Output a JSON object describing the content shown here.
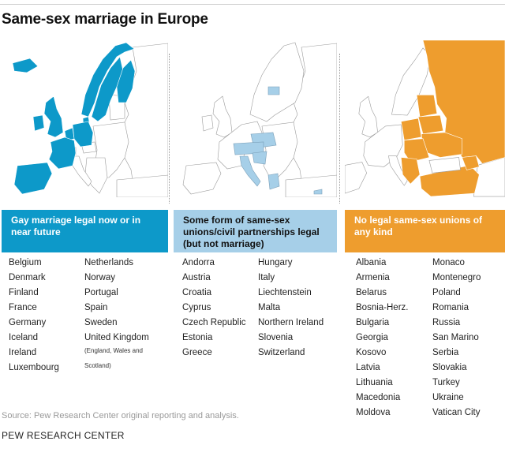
{
  "title": "Same-sex marriage in Europe",
  "colors": {
    "marriage": "#0d99c9",
    "civil_unions": "#a6cfe8",
    "no_recognition": "#ee9d2e",
    "unhighlighted": "#ffffff",
    "border": "#9a9a9a"
  },
  "categories": [
    {
      "key": "marriage",
      "label": "Gay marriage legal now or in near future",
      "countries_left": [
        "Belgium",
        "Denmark",
        "Finland",
        "France",
        "Germany",
        "Iceland",
        "Ireland",
        "Luxembourg"
      ],
      "countries_right": [
        "Netherlands",
        "Norway",
        "Portugal",
        "Spain",
        "Sweden",
        "United Kingdom"
      ],
      "uk_note": "(England, Wales and Scotland)"
    },
    {
      "key": "civil_unions",
      "label": "Some form of same-sex unions/civil partnerships legal (but not marriage)",
      "countries_left": [
        "Andorra",
        "Austria",
        "Croatia",
        "Cyprus",
        "Czech Republic",
        "Estonia",
        "Greece"
      ],
      "countries_right": [
        "Hungary",
        "Italy",
        "Liechtenstein",
        "Malta",
        "Northern Ireland",
        "Slovenia",
        "Switzerland"
      ]
    },
    {
      "key": "no_recognition",
      "label": "No legal same-sex unions of any kind",
      "countries_left": [
        "Albania",
        "Armenia",
        "Belarus",
        "Bosnia-Herz.",
        "Bulgaria",
        "Georgia",
        "Kosovo",
        "Latvia",
        "Lithuania",
        "Macedonia",
        "Moldova"
      ],
      "countries_right": [
        "Monaco",
        "Montenegro",
        "Poland",
        "Romania",
        "Russia",
        "San Marino",
        "Serbia",
        "Slovakia",
        "Turkey",
        "Ukraine",
        "Vatican City"
      ]
    }
  ],
  "source": "Source: Pew Research Center original reporting and analysis.",
  "footer": "PEW RESEARCH CENTER"
}
